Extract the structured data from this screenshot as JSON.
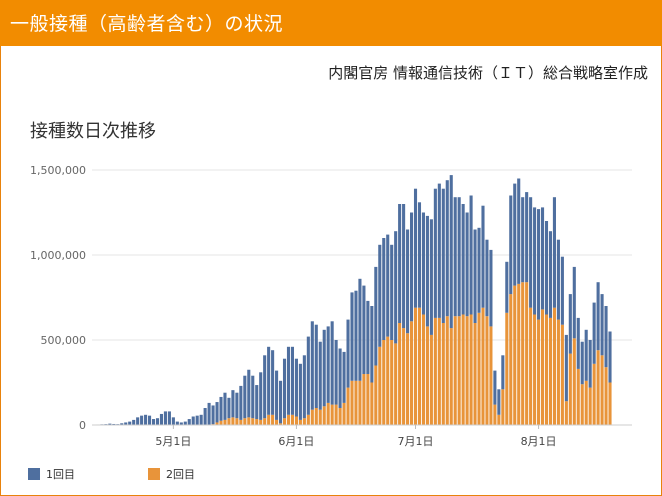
{
  "header": {
    "title": "一般接種（高齢者含む）の状況"
  },
  "source": "内閣官房 情報通信技術（ＩＴ）総合戦略室作成",
  "colors": {
    "header_bg": "#f28c00",
    "first_dose": "#4f6f9f",
    "second_dose": "#e8943a"
  },
  "chart_data": {
    "type": "bar",
    "stacked": true,
    "title": "接種数日次推移",
    "xlabel": "",
    "ylabel": "",
    "ylim": [
      0,
      1500000
    ],
    "yticks": [
      0,
      500000,
      1000000,
      1500000
    ],
    "ytick_labels": [
      "0",
      "500,000",
      "1,000,000",
      "1,500,000"
    ],
    "xtick_labels": [
      "5月1日",
      "6月1日",
      "7月1日",
      "8月1日"
    ],
    "xtick_index": [
      20,
      51,
      81,
      112
    ],
    "grid": true,
    "legend_position": "bottom-left",
    "legend": [
      "1回目",
      "2回目"
    ],
    "series": [
      {
        "name": "1回目",
        "color": "#4f6f9f",
        "values": [
          2000,
          3000,
          4000,
          5000,
          8000,
          6000,
          5000,
          10000,
          15000,
          20000,
          30000,
          45000,
          55000,
          60000,
          55000,
          35000,
          40000,
          65000,
          80000,
          80000,
          45000,
          20000,
          15000,
          20000,
          35000,
          50000,
          55000,
          60000,
          100000,
          130000,
          110000,
          120000,
          140000,
          160000,
          120000,
          160000,
          150000,
          200000,
          250000,
          280000,
          250000,
          200000,
          280000,
          370000,
          400000,
          380000,
          290000,
          250000,
          350000,
          400000,
          400000,
          340000,
          330000,
          370000,
          460000,
          520000,
          490000,
          400000,
          450000,
          450000,
          490000,
          380000,
          350000,
          300000,
          400000,
          520000,
          530000,
          600000,
          520000,
          430000,
          450000,
          580000,
          600000,
          600000,
          600000,
          560000,
          660000,
          700000,
          730000,
          610000,
          640000,
          700000,
          620000,
          600000,
          650000,
          680000,
          760000,
          790000,
          790000,
          800000,
          900000,
          700000,
          700000,
          650000,
          610000,
          700000,
          550000,
          500000,
          600000,
          450000,
          450000,
          200000,
          150000,
          200000,
          300000,
          580000,
          600000,
          620000,
          500000,
          530000,
          650000,
          630000,
          650000,
          600000,
          550000,
          510000,
          650000,
          470000,
          400000,
          390000,
          350000,
          420000,
          300000,
          250000,
          300000,
          280000,
          360000,
          400000,
          360000,
          360000,
          300000
        ]
      },
      {
        "name": "2回目",
        "color": "#e8943a",
        "values": [
          0,
          0,
          0,
          0,
          0,
          0,
          0,
          0,
          0,
          0,
          0,
          0,
          0,
          0,
          0,
          0,
          0,
          0,
          0,
          0,
          0,
          0,
          0,
          0,
          0,
          0,
          0,
          0,
          0,
          0,
          5000,
          15000,
          25000,
          30000,
          40000,
          45000,
          40000,
          30000,
          40000,
          45000,
          40000,
          35000,
          30000,
          40000,
          60000,
          60000,
          30000,
          10000,
          40000,
          60000,
          60000,
          50000,
          30000,
          40000,
          60000,
          90000,
          100000,
          90000,
          110000,
          130000,
          120000,
          120000,
          100000,
          130000,
          220000,
          260000,
          260000,
          260000,
          300000,
          300000,
          250000,
          350000,
          460000,
          500000,
          520000,
          500000,
          480000,
          600000,
          570000,
          540000,
          610000,
          690000,
          690000,
          650000,
          580000,
          530000,
          630000,
          630000,
          600000,
          640000,
          570000,
          640000,
          640000,
          650000,
          640000,
          650000,
          600000,
          660000,
          690000,
          640000,
          580000,
          120000,
          60000,
          210000,
          660000,
          770000,
          820000,
          830000,
          840000,
          840000,
          690000,
          650000,
          620000,
          680000,
          650000,
          630000,
          690000,
          620000,
          590000,
          140000,
          420000,
          510000,
          330000,
          240000,
          260000,
          220000,
          360000,
          440000,
          410000,
          340000,
          250000
        ]
      }
    ]
  }
}
